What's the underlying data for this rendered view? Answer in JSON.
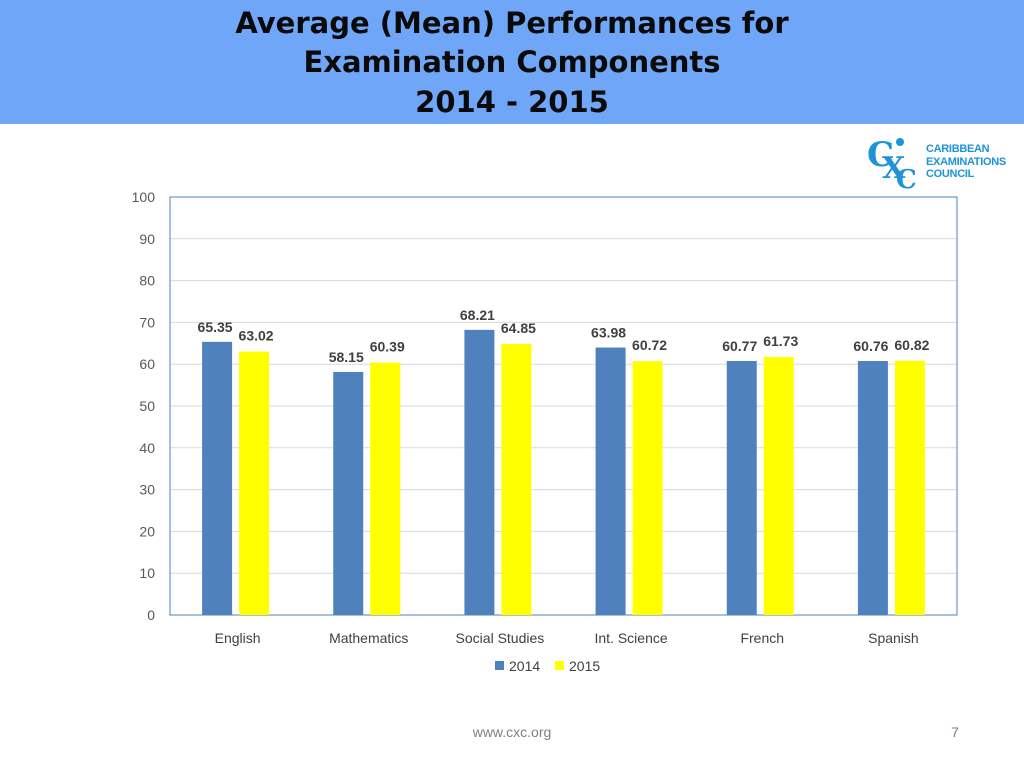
{
  "slide": {
    "title_lines": [
      "Average (Mean) Performances for",
      "Examination Components",
      "2014 - 2015"
    ],
    "footer_url": "www.cxc.org",
    "page_number": "7"
  },
  "logo": {
    "icon": "cxc-logo-icon",
    "lines": [
      "CARIBBEAN",
      "EXAMINATIONS",
      "COUNCIL"
    ],
    "color": "#1e93d6"
  },
  "colors": {
    "header_bg": "#6fa6f7",
    "series_2014": "#4f81bd",
    "series_2015": "#ffff00",
    "grid": "#d9d9d9",
    "plot_border": "#4f81bd"
  },
  "chart_data": {
    "type": "bar",
    "title": "",
    "xlabel": "",
    "ylabel": "",
    "ylim": [
      0,
      100
    ],
    "yticks": [
      0,
      10,
      20,
      30,
      40,
      50,
      60,
      70,
      80,
      90,
      100
    ],
    "grid": true,
    "legend_position": "bottom",
    "categories": [
      "English",
      "Mathematics",
      "Social Studies",
      "Int. Science",
      "French",
      "Spanish"
    ],
    "series": [
      {
        "name": "2014",
        "color": "#4f81bd",
        "values": [
          65.35,
          58.15,
          68.21,
          63.98,
          60.77,
          60.76
        ]
      },
      {
        "name": "2015",
        "color": "#ffff00",
        "values": [
          63.02,
          60.39,
          64.85,
          60.72,
          61.73,
          60.82
        ]
      }
    ]
  }
}
